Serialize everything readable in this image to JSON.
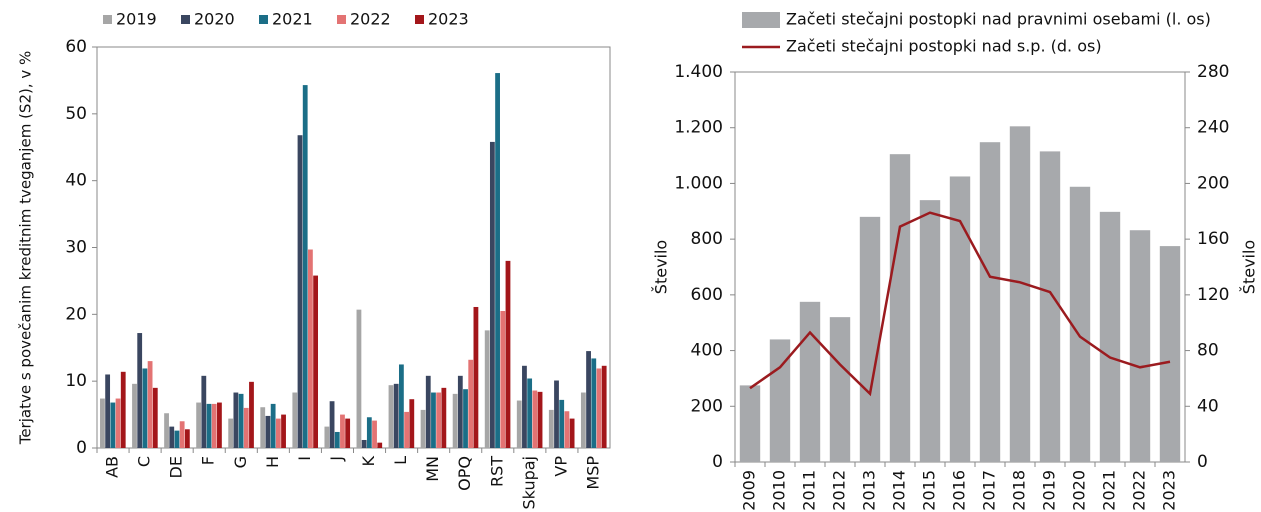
{
  "chart_data": [
    {
      "type": "bar",
      "y_label": "Terjatve s povečanim kreditnim tveganjem (S2), v %",
      "categories": [
        "AB",
        "C",
        "DE",
        "F",
        "G",
        "H",
        "I",
        "J",
        "K",
        "L",
        "MN",
        "OPQ",
        "RST",
        "Skupaj",
        "VP",
        "MSP"
      ],
      "series": [
        {
          "name": "2019",
          "color": "#a6a6a6",
          "values": [
            7.4,
            9.6,
            5.2,
            6.8,
            4.4,
            6.1,
            8.3,
            3.2,
            20.7,
            9.4,
            5.7,
            8.1,
            17.6,
            7.1,
            5.7,
            8.3
          ]
        },
        {
          "name": "2020",
          "color": "#3a4660",
          "values": [
            11.0,
            17.2,
            3.2,
            10.8,
            8.3,
            4.8,
            46.8,
            7.0,
            1.2,
            9.6,
            10.8,
            10.8,
            45.8,
            12.3,
            10.1,
            14.5
          ]
        },
        {
          "name": "2021",
          "color": "#1b6e87",
          "values": [
            6.8,
            11.9,
            2.6,
            6.6,
            8.1,
            6.6,
            54.3,
            2.4,
            4.6,
            12.5,
            8.3,
            8.8,
            56.1,
            10.4,
            7.2,
            13.4
          ]
        },
        {
          "name": "2022",
          "color": "#e37373",
          "values": [
            7.4,
            13.0,
            4.0,
            6.6,
            6.0,
            4.4,
            29.7,
            5.0,
            4.1,
            5.4,
            8.3,
            13.2,
            20.5,
            8.6,
            5.5,
            11.9
          ]
        },
        {
          "name": "2023",
          "color": "#a3161a",
          "values": [
            11.4,
            9.0,
            2.8,
            6.8,
            9.9,
            5.0,
            25.8,
            4.4,
            0.8,
            7.3,
            9.0,
            21.1,
            28.0,
            8.4,
            4.4,
            12.3
          ]
        }
      ],
      "ylim": [
        0,
        60
      ],
      "yticks": [
        0,
        10,
        20,
        30,
        40,
        50,
        60
      ],
      "legend": "top"
    },
    {
      "type": "combo",
      "y_label": "Število",
      "y2_label": "Število",
      "categories": [
        "2009",
        "2010",
        "2011",
        "2012",
        "2013",
        "2014",
        "2015",
        "2016",
        "2017",
        "2018",
        "2019",
        "2020",
        "2021",
        "2022",
        "2023"
      ],
      "series": [
        {
          "name": "Začeti stečajni postopki nad pravnimi osebami (l. os)",
          "color": "#a7a9ac",
          "kind": "bar",
          "values": [
            275,
            440,
            575,
            520,
            880,
            1105,
            940,
            1025,
            1148,
            1205,
            1115,
            988,
            898,
            832,
            775
          ]
        },
        {
          "name": "Začeti stečajni postopki nad s.p. (d. os)",
          "color": "#9b1b1f",
          "kind": "line",
          "axis": "y2",
          "values": [
            53,
            68,
            93,
            70,
            49,
            169,
            179,
            173,
            133,
            129,
            122,
            90,
            75,
            68,
            72
          ]
        }
      ],
      "ylim": [
        0,
        1400
      ],
      "yticks": [
        0,
        200,
        400,
        600,
        800,
        {
          "value": 1000,
          "label": "1.000"
        },
        {
          "value": 1200,
          "label": "1.200"
        },
        {
          "value": 1400,
          "label": "1.400"
        }
      ],
      "y2lim": [
        0,
        280
      ],
      "y2ticks": [
        0,
        40,
        80,
        120,
        160,
        200,
        240,
        280
      ],
      "legend": "top"
    }
  ]
}
